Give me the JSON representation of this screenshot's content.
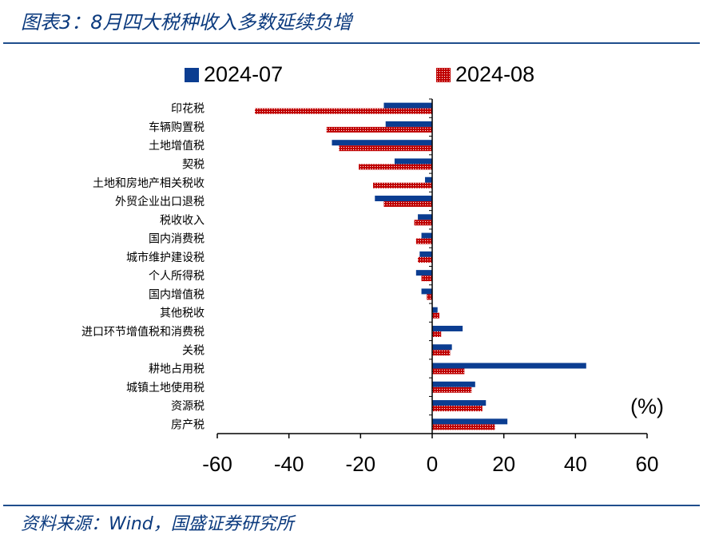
{
  "header": {
    "title": "图表3：8月四大税种收入多数延续负增"
  },
  "footer": {
    "source": "资料来源：Wind，国盛证券研究所"
  },
  "colors": {
    "series1": "#0b3d91",
    "series2": "#c00000",
    "rule": "#1f4e8c",
    "title": "#0b3a7e"
  },
  "chart_data": {
    "type": "bar",
    "orientation": "horizontal",
    "unit": "(%)",
    "categories": [
      "印花税",
      "车辆购置税",
      "土地增值税",
      "契税",
      "土地和房地产相关税收",
      "外贸企业出口退税",
      "税收收入",
      "国内消费税",
      "城市维护建设税",
      "个人所得税",
      "国内增值税",
      "其他税收",
      "进口环节增值税和消费税",
      "关税",
      "耕地占用税",
      "城镇土地使用税",
      "资源税",
      "房产税"
    ],
    "series": [
      {
        "name": "2024-07",
        "color": "#0b3d91",
        "pattern": "solid",
        "values": [
          -13.5,
          -13,
          -28,
          -10.5,
          -2,
          -16,
          -4,
          -3,
          -3.5,
          -4.5,
          -3,
          1.5,
          8.5,
          5.5,
          43,
          12,
          15,
          21
        ]
      },
      {
        "name": "2024-08",
        "color": "#c00000",
        "pattern": "dotted",
        "values": [
          -49.5,
          -29.5,
          -26,
          -20.5,
          -16.5,
          -13.5,
          -5,
          -4.5,
          -4,
          -3,
          -1.5,
          2,
          2.5,
          5,
          9,
          11,
          14,
          17.5
        ]
      }
    ],
    "xlim": [
      -60,
      60
    ],
    "xticks": [
      "-60",
      "-40",
      "-20",
      "0",
      "20",
      "40",
      "60"
    ],
    "legend": "top"
  }
}
